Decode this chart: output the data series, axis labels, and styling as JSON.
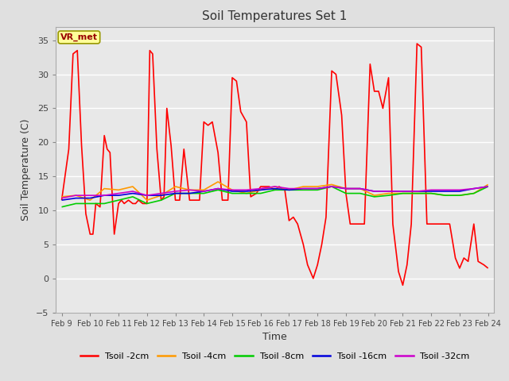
{
  "title": "Soil Temperatures Set 1",
  "xlabel": "Time",
  "ylabel": "Soil Temperature (C)",
  "ylim": [
    -5,
    37
  ],
  "yticks": [
    -5,
    0,
    5,
    10,
    15,
    20,
    25,
    30,
    35
  ],
  "background_color": "#e0e0e0",
  "plot_bg_color": "#e8e8e8",
  "annotation_text": "VR_met",
  "annotation_bg": "#ffff99",
  "annotation_border": "#999900",
  "x_labels": [
    "Feb 9",
    "Feb 10",
    "Feb 11",
    "Feb 12",
    "Feb 13",
    "Feb 14",
    "Feb 15",
    "Feb 16",
    "Feb 17",
    "Feb 18",
    "Feb 19",
    "Feb 20",
    "Feb 21",
    "Feb 22",
    "Feb 23",
    "Feb 24"
  ],
  "series_order": [
    "Tsoil -2cm",
    "Tsoil -4cm",
    "Tsoil -8cm",
    "Tsoil -16cm",
    "Tsoil -32cm"
  ],
  "series": {
    "Tsoil -2cm": {
      "color": "#ff0000",
      "lw": 1.2,
      "data_x": [
        0.0,
        0.25,
        0.4,
        0.55,
        0.7,
        0.85,
        1.0,
        1.1,
        1.2,
        1.35,
        1.5,
        1.6,
        1.7,
        1.85,
        2.0,
        2.1,
        2.2,
        2.35,
        2.5,
        2.6,
        2.7,
        2.85,
        3.0,
        3.1,
        3.2,
        3.35,
        3.5,
        3.6,
        3.7,
        3.85,
        4.0,
        4.15,
        4.3,
        4.5,
        4.65,
        4.85,
        5.0,
        5.15,
        5.3,
        5.5,
        5.65,
        5.85,
        6.0,
        6.15,
        6.3,
        6.5,
        6.65,
        6.85,
        7.0,
        7.15,
        7.3,
        7.5,
        7.65,
        7.85,
        8.0,
        8.15,
        8.3,
        8.5,
        8.65,
        8.85,
        9.0,
        9.15,
        9.3,
        9.5,
        9.65,
        9.85,
        10.0,
        10.15,
        10.3,
        10.5,
        10.65,
        10.85,
        11.0,
        11.15,
        11.3,
        11.5,
        11.65,
        11.85,
        12.0,
        12.15,
        12.3,
        12.5,
        12.65,
        12.85,
        13.0,
        13.15,
        13.3,
        13.5,
        13.65,
        13.85,
        14.0,
        14.15,
        14.3,
        14.5,
        14.65,
        14.85,
        15.0
      ],
      "data_y": [
        11.5,
        19.0,
        33.0,
        33.5,
        19.5,
        9.5,
        6.5,
        6.5,
        11.0,
        10.5,
        21.0,
        19.0,
        18.5,
        6.5,
        11.0,
        11.5,
        11.0,
        11.5,
        11.0,
        11.0,
        11.5,
        11.0,
        11.0,
        33.5,
        33.0,
        19.0,
        11.5,
        12.0,
        25.0,
        19.5,
        11.5,
        11.5,
        19.0,
        11.5,
        11.5,
        11.5,
        23.0,
        22.5,
        23.0,
        18.5,
        11.5,
        11.5,
        29.5,
        29.0,
        24.5,
        23.0,
        12.0,
        12.5,
        13.5,
        13.5,
        13.5,
        13.0,
        13.5,
        13.0,
        8.5,
        9.0,
        8.0,
        5.0,
        2.0,
        0.0,
        2.0,
        5.0,
        9.0,
        30.5,
        30.0,
        24.0,
        12.5,
        8.0,
        8.0,
        8.0,
        8.0,
        31.5,
        27.5,
        27.5,
        25.0,
        29.5,
        8.0,
        1.0,
        -1.0,
        2.0,
        8.0,
        34.5,
        34.0,
        8.0,
        8.0,
        8.0,
        8.0,
        8.0,
        8.0,
        3.0,
        1.5,
        3.0,
        2.5,
        8.0,
        2.5,
        2.0,
        1.5
      ]
    },
    "Tsoil -4cm": {
      "color": "#ff9900",
      "lw": 1.2,
      "data_x": [
        0.0,
        0.5,
        1.0,
        1.5,
        2.0,
        2.5,
        3.0,
        3.5,
        4.0,
        4.5,
        5.0,
        5.5,
        6.0,
        6.5,
        7.0,
        7.5,
        8.0,
        8.5,
        9.0,
        9.5,
        10.0,
        10.5,
        11.0,
        11.5,
        12.0,
        12.5,
        13.0,
        13.5,
        14.0,
        14.5,
        15.0
      ],
      "data_y": [
        12.0,
        12.2,
        11.5,
        13.2,
        13.0,
        13.5,
        11.5,
        12.2,
        13.5,
        13.0,
        13.0,
        14.2,
        13.0,
        12.5,
        13.0,
        13.5,
        13.0,
        13.5,
        13.5,
        13.8,
        13.2,
        13.2,
        12.2,
        12.5,
        12.5,
        12.5,
        12.5,
        12.2,
        12.2,
        12.5,
        13.8
      ]
    },
    "Tsoil -8cm": {
      "color": "#00cc00",
      "lw": 1.2,
      "data_x": [
        0.0,
        0.5,
        1.0,
        1.5,
        2.0,
        2.5,
        3.0,
        3.5,
        4.0,
        4.5,
        5.0,
        5.5,
        6.0,
        6.5,
        7.0,
        7.5,
        8.0,
        8.5,
        9.0,
        9.5,
        10.0,
        10.5,
        11.0,
        11.5,
        12.0,
        12.5,
        13.0,
        13.5,
        14.0,
        14.5,
        15.0
      ],
      "data_y": [
        10.5,
        11.0,
        11.0,
        11.0,
        11.5,
        12.0,
        11.0,
        11.5,
        12.5,
        12.5,
        12.5,
        13.0,
        12.5,
        12.5,
        12.5,
        13.0,
        13.0,
        13.0,
        13.0,
        13.5,
        12.5,
        12.5,
        12.0,
        12.2,
        12.5,
        12.5,
        12.5,
        12.2,
        12.2,
        12.5,
        13.5
      ]
    },
    "Tsoil -16cm": {
      "color": "#0000dd",
      "lw": 1.2,
      "data_x": [
        0.0,
        0.5,
        1.0,
        1.5,
        2.0,
        2.5,
        3.0,
        3.5,
        4.0,
        4.5,
        5.0,
        5.5,
        6.0,
        6.5,
        7.0,
        7.5,
        8.0,
        8.5,
        9.0,
        9.5,
        10.0,
        10.5,
        11.0,
        11.5,
        12.0,
        12.5,
        13.0,
        13.5,
        14.0,
        14.5,
        15.0
      ],
      "data_y": [
        11.5,
        11.8,
        11.8,
        12.2,
        12.2,
        12.5,
        12.2,
        12.2,
        12.5,
        12.5,
        12.8,
        13.2,
        12.8,
        12.8,
        13.0,
        13.2,
        13.0,
        13.2,
        13.2,
        13.5,
        13.2,
        13.2,
        12.8,
        12.8,
        12.8,
        12.8,
        12.8,
        12.8,
        12.8,
        13.2,
        13.5
      ]
    },
    "Tsoil -32cm": {
      "color": "#cc00cc",
      "lw": 1.2,
      "data_x": [
        0.0,
        0.5,
        1.0,
        1.5,
        2.0,
        2.5,
        3.0,
        3.5,
        4.0,
        4.5,
        5.0,
        5.5,
        6.0,
        6.5,
        7.0,
        7.5,
        8.0,
        8.5,
        9.0,
        9.5,
        10.0,
        10.5,
        11.0,
        11.5,
        12.0,
        12.5,
        13.0,
        13.5,
        14.0,
        14.5,
        15.0
      ],
      "data_y": [
        11.8,
        12.2,
        12.2,
        12.2,
        12.5,
        12.8,
        12.2,
        12.5,
        12.8,
        13.0,
        12.8,
        13.2,
        13.0,
        13.0,
        13.2,
        13.5,
        13.2,
        13.2,
        13.2,
        13.5,
        13.2,
        13.2,
        12.8,
        12.8,
        12.8,
        12.8,
        13.0,
        13.0,
        13.0,
        13.2,
        13.5
      ]
    }
  }
}
